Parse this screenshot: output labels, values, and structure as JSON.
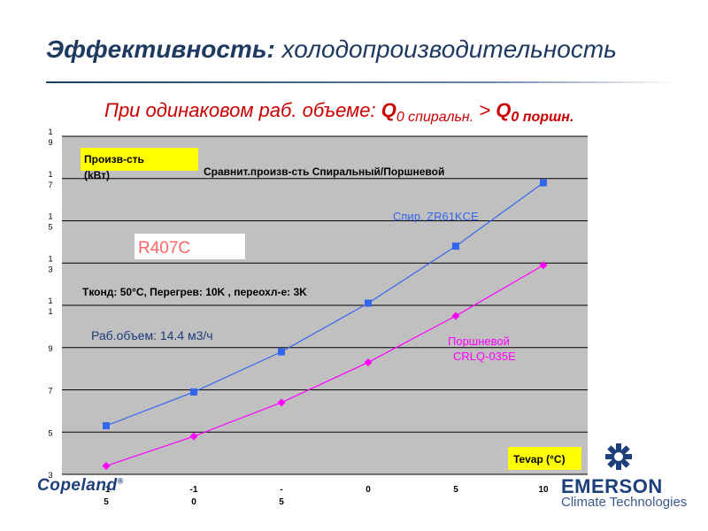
{
  "slide": {
    "title_bold": "Эффективность:",
    "title_rest": " холодопроизводительность",
    "subtitle": {
      "prefix": "При одинаковом раб. объеме: ",
      "q_left": "Q",
      "sub_left": "0 спиральн.",
      "gt": " > ",
      "q_right": "Q",
      "sub_right": "0 поршн."
    }
  },
  "chart_data": {
    "type": "line",
    "title": "Сравнит.произв-сть Спиральный/Поршневой",
    "xlabel": "Tevap (°C)",
    "ylabel": "Произв-сть (kВт)",
    "x_tick_labels": [
      "-15",
      "-10",
      "-5",
      "0",
      "5",
      "10"
    ],
    "y_tick_labels": [
      "3",
      "5",
      "7",
      "9",
      "11",
      "13",
      "15",
      "17",
      "19"
    ],
    "x": [
      -15,
      -10,
      -5,
      0,
      5,
      10
    ],
    "ylim": [
      3,
      19
    ],
    "grid": true,
    "series": [
      {
        "name": "Спир. ZR61KCE",
        "marker": "square",
        "color": "#3366ee",
        "values": [
          5.3,
          6.9,
          8.8,
          11.1,
          13.8,
          16.8
        ]
      },
      {
        "name": "Поршневой CRLQ-035E",
        "marker": "diamond",
        "color": "#ff00ff",
        "values": [
          3.4,
          4.8,
          6.4,
          8.3,
          10.5,
          12.9
        ]
      }
    ],
    "annotations": {
      "refrigerant": "R407C",
      "conditions": "Tконд: 50°C, Перегрев: 10K , переохл-е: 3K",
      "displacement": "Раб.объем: 14.4 м3/ч"
    }
  },
  "footer": {
    "copeland": "Copeland",
    "reg": "®",
    "emerson": "EMERSON",
    "emerson_sub": "Climate Technologies"
  }
}
